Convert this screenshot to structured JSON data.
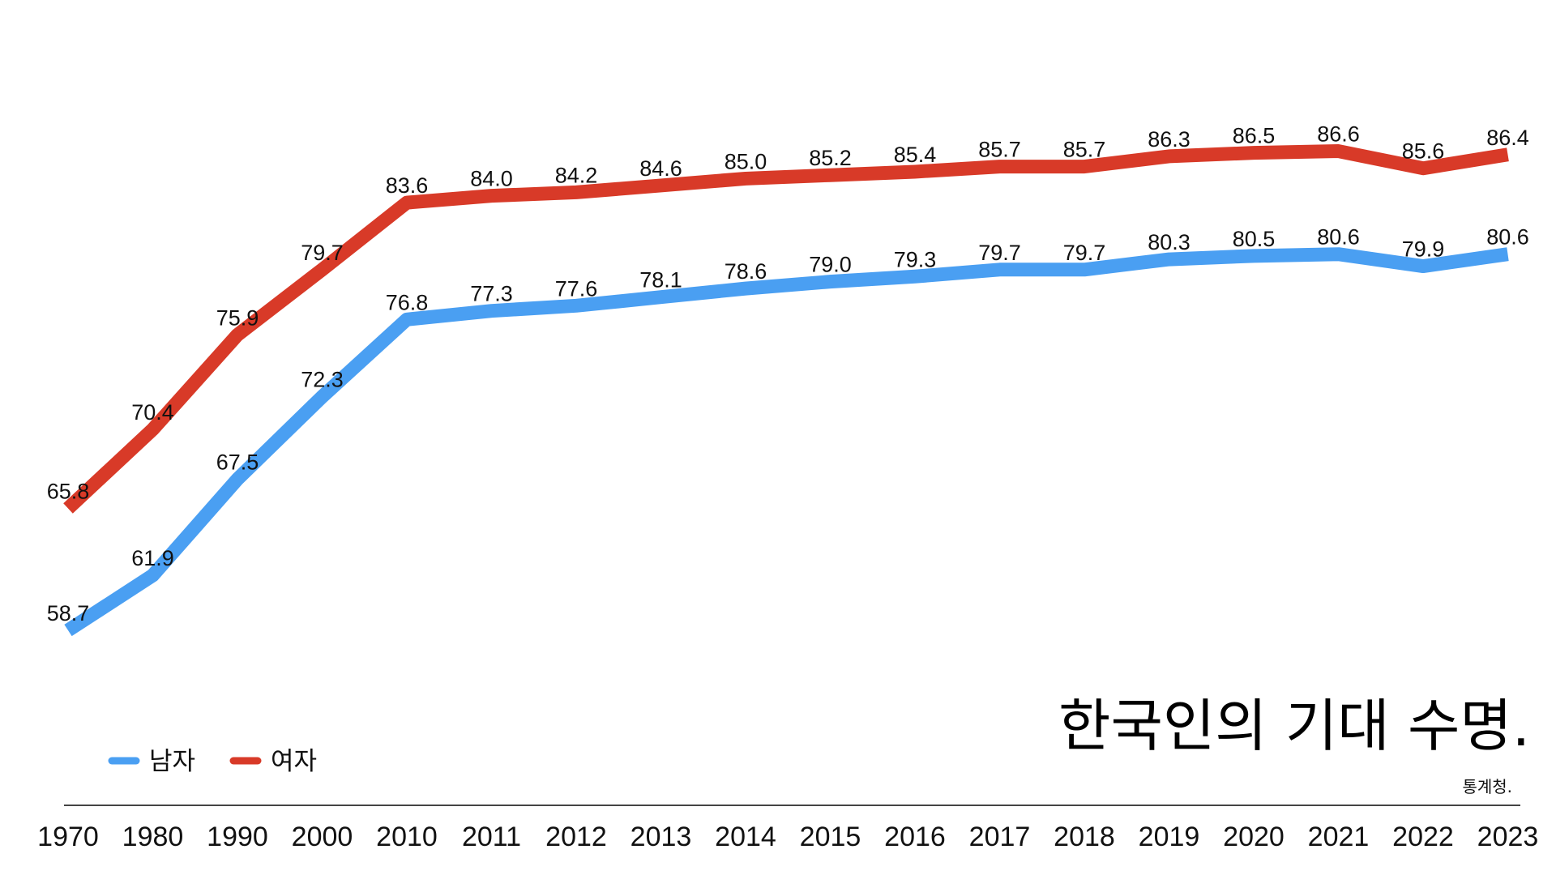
{
  "chart_data": {
    "type": "line",
    "title": "한국인의 기대 수명.",
    "source": "통계청.",
    "categories": [
      "1970",
      "1980",
      "1990",
      "2000",
      "2010",
      "2011",
      "2012",
      "2013",
      "2014",
      "2015",
      "2016",
      "2017",
      "2018",
      "2019",
      "2020",
      "2021",
      "2022",
      "2023"
    ],
    "series": [
      {
        "name": "남자",
        "color": "#4a9ff2",
        "values": [
          58.7,
          61.9,
          67.5,
          72.3,
          76.8,
          77.3,
          77.6,
          78.1,
          78.6,
          79.0,
          79.3,
          79.7,
          79.7,
          80.3,
          80.5,
          80.6,
          79.9,
          80.6
        ],
        "labels": [
          "58.7",
          "61.9",
          "67.5",
          "72.3",
          "76.8",
          "77.3",
          "77.6",
          "78.1",
          "78.6",
          "79.0",
          "79.3",
          "79.7",
          "79.7",
          "80.3",
          "80.5",
          "80.6",
          "79.9",
          "80.6"
        ]
      },
      {
        "name": "여자",
        "color": "#d83a28",
        "values": [
          65.8,
          70.4,
          75.9,
          79.7,
          83.6,
          84.0,
          84.2,
          84.6,
          85.0,
          85.2,
          85.4,
          85.7,
          85.7,
          86.3,
          86.5,
          86.6,
          85.6,
          86.4
        ],
        "labels": [
          "65.8",
          "70.4",
          "75.9",
          "79.7",
          "83.6",
          "84.0",
          "84.2",
          "84.6",
          "85.0",
          "85.2",
          "85.4",
          "85.7",
          "85.7",
          "86.3",
          "86.5",
          "86.6",
          "85.6",
          "86.4"
        ]
      }
    ],
    "xlabel": "",
    "ylabel": "",
    "ylim": [
      55,
      90
    ],
    "y_axis_visible": false,
    "grid": false,
    "legend": "bottom-left",
    "data_labels": true,
    "baseline_visible": true
  }
}
